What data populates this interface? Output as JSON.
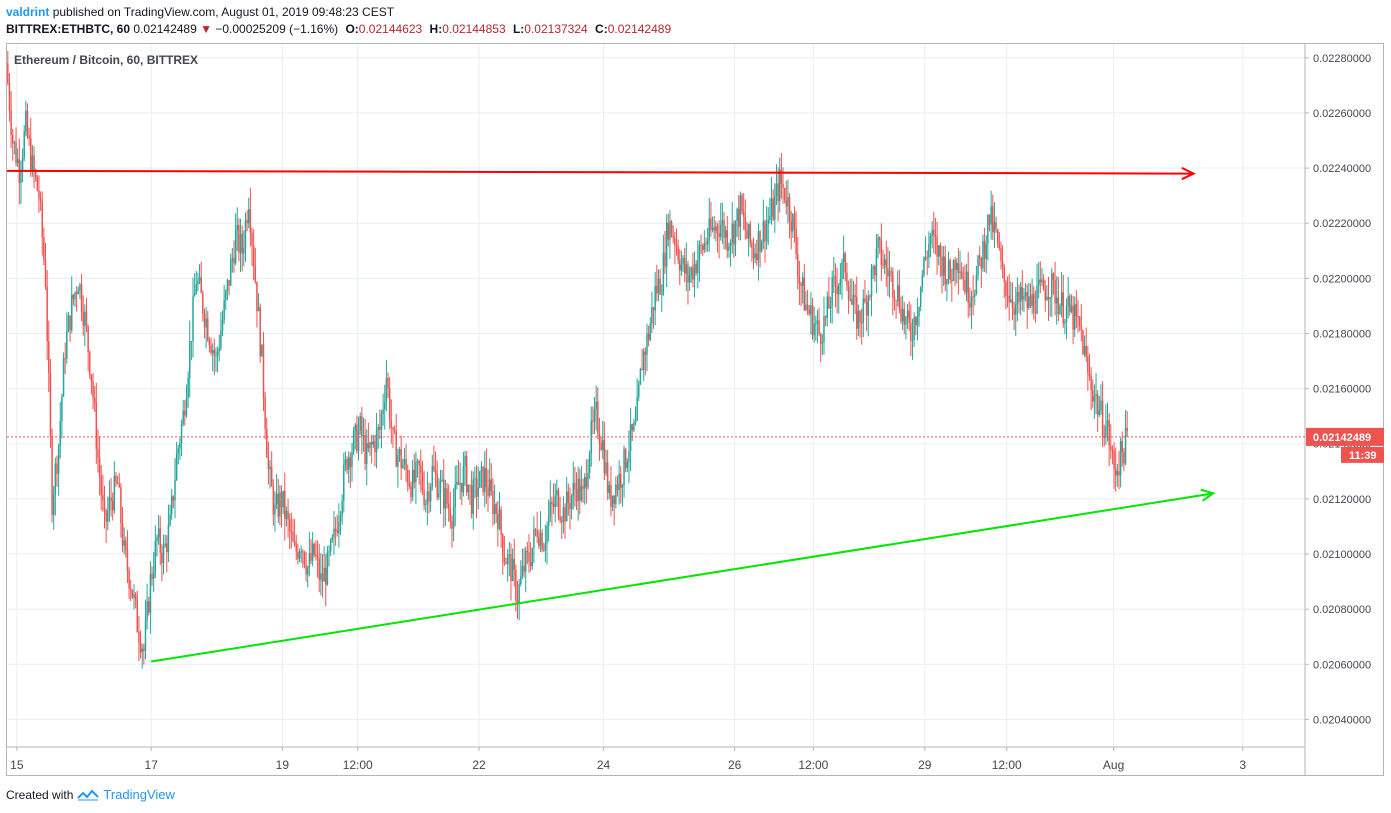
{
  "header": {
    "author": "valdrint",
    "published": "published on TradingView.com, August 01, 2019 09:48:23 CEST",
    "symbol": "BITTREX:ETHBTC, 60",
    "last": "0.02142489",
    "change_arrow": "▼",
    "change": "−0.00025209 (−1.16%)",
    "o_label": "O:",
    "o": "0.02144623",
    "h_label": "H:",
    "h": "0.02144853",
    "l_label": "L:",
    "l": "0.02137324",
    "c_label": "C:",
    "c": "0.02142489"
  },
  "legend": "Ethereum / Bitcoin, 60, BITTREX",
  "footer": {
    "created_with": "Created with",
    "brand": "TradingView"
  },
  "colors": {
    "up": "#26a69a",
    "down": "#ef5350",
    "grid": "#e9eef3",
    "resistance": "#ff0000",
    "support": "#00e600",
    "price_tag": "#ef5350",
    "axis_text": "#434651"
  },
  "chart_data": {
    "type": "candlestick",
    "title": "Ethereum / Bitcoin, 60, BITTREX",
    "ylim": [
      0.0203,
      0.02285
    ],
    "y_ticks": [
      "0.02040000",
      "0.02060000",
      "0.02080000",
      "0.02100000",
      "0.02120000",
      "0.02140000",
      "0.02160000",
      "0.02180000",
      "0.02200000",
      "0.02220000",
      "0.02240000",
      "0.02260000",
      "0.02280000"
    ],
    "x_ticks": [
      {
        "label": "15",
        "t": 1.5
      },
      {
        "label": "17",
        "t": 22
      },
      {
        "label": "19",
        "t": 42
      },
      {
        "label": "12:00",
        "t": 53.5
      },
      {
        "label": "22",
        "t": 72
      },
      {
        "label": "24",
        "t": 91
      },
      {
        "label": "26",
        "t": 111
      },
      {
        "label": "12:00",
        "t": 123
      },
      {
        "label": "29",
        "t": 140
      },
      {
        "label": "12:00",
        "t": 152.5
      },
      {
        "label": "Aug",
        "t": 168.8
      },
      {
        "label": "3",
        "t": 188.5
      }
    ],
    "xlim": [
      0,
      198
    ],
    "current_price": "0.02142489",
    "countdown": "11:39",
    "price_path": [
      [
        0,
        0.02278
      ],
      [
        1,
        0.0225
      ],
      [
        2,
        0.0224
      ],
      [
        3,
        0.02255
      ],
      [
        4,
        0.0224
      ],
      [
        5,
        0.0223
      ],
      [
        6,
        0.022
      ],
      [
        7,
        0.0212
      ],
      [
        8,
        0.0214
      ],
      [
        9,
        0.02175
      ],
      [
        10,
        0.0219
      ],
      [
        11,
        0.022
      ],
      [
        12,
        0.02185
      ],
      [
        13,
        0.02165
      ],
      [
        14,
        0.02135
      ],
      [
        15,
        0.0211
      ],
      [
        16,
        0.0212
      ],
      [
        17,
        0.02125
      ],
      [
        18,
        0.021
      ],
      [
        19,
        0.0209
      ],
      [
        20,
        0.02075
      ],
      [
        21,
        0.02065
      ],
      [
        22,
        0.0209
      ],
      [
        23,
        0.02105
      ],
      [
        24,
        0.021
      ],
      [
        25,
        0.0211
      ],
      [
        26,
        0.02135
      ],
      [
        27,
        0.0215
      ],
      [
        28,
        0.02175
      ],
      [
        29,
        0.022
      ],
      [
        30,
        0.0219
      ],
      [
        31,
        0.0218
      ],
      [
        32,
        0.0217
      ],
      [
        33,
        0.02185
      ],
      [
        34,
        0.022
      ],
      [
        35,
        0.02215
      ],
      [
        36,
        0.0221
      ],
      [
        37,
        0.0223
      ],
      [
        38,
        0.022
      ],
      [
        39,
        0.0217
      ],
      [
        40,
        0.0213
      ],
      [
        41,
        0.02115
      ],
      [
        42,
        0.0212
      ],
      [
        43,
        0.0211
      ],
      [
        44,
        0.021
      ],
      [
        45,
        0.02105
      ],
      [
        46,
        0.02095
      ],
      [
        47,
        0.021
      ],
      [
        48,
        0.0209
      ],
      [
        49,
        0.02095
      ],
      [
        50,
        0.02105
      ],
      [
        51,
        0.0212
      ],
      [
        52,
        0.02135
      ],
      [
        53,
        0.0214
      ],
      [
        54,
        0.02145
      ],
      [
        55,
        0.02135
      ],
      [
        56,
        0.0214
      ],
      [
        57,
        0.02145
      ],
      [
        58,
        0.02165
      ],
      [
        59,
        0.0214
      ],
      [
        60,
        0.02135
      ],
      [
        61,
        0.0213
      ],
      [
        62,
        0.02125
      ],
      [
        63,
        0.0213
      ],
      [
        64,
        0.0212
      ],
      [
        65,
        0.0213
      ],
      [
        66,
        0.02125
      ],
      [
        67,
        0.0212
      ],
      [
        68,
        0.02115
      ],
      [
        69,
        0.02125
      ],
      [
        70,
        0.0213
      ],
      [
        71,
        0.0212
      ],
      [
        72,
        0.02125
      ],
      [
        73,
        0.02128
      ],
      [
        74,
        0.0212
      ],
      [
        75,
        0.02115
      ],
      [
        76,
        0.021
      ],
      [
        77,
        0.02095
      ],
      [
        78,
        0.02085
      ],
      [
        79,
        0.02095
      ],
      [
        80,
        0.021
      ],
      [
        81,
        0.0211
      ],
      [
        82,
        0.02105
      ],
      [
        83,
        0.02115
      ],
      [
        84,
        0.0212
      ],
      [
        85,
        0.02115
      ],
      [
        86,
        0.0212
      ],
      [
        87,
        0.02125
      ],
      [
        88,
        0.0212
      ],
      [
        89,
        0.0214
      ],
      [
        90,
        0.0215
      ],
      [
        91,
        0.0214
      ],
      [
        92,
        0.0212
      ],
      [
        93,
        0.02125
      ],
      [
        94,
        0.0213
      ],
      [
        95,
        0.0214
      ],
      [
        96,
        0.02145
      ],
      [
        97,
        0.0217
      ],
      [
        98,
        0.0218
      ],
      [
        99,
        0.02195
      ],
      [
        100,
        0.022
      ],
      [
        101,
        0.0222
      ],
      [
        102,
        0.02215
      ],
      [
        103,
        0.02205
      ],
      [
        104,
        0.022
      ],
      [
        105,
        0.02205
      ],
      [
        106,
        0.0221
      ],
      [
        107,
        0.02215
      ],
      [
        108,
        0.02218
      ],
      [
        109,
        0.0222
      ],
      [
        110,
        0.02215
      ],
      [
        111,
        0.02218
      ],
      [
        112,
        0.02225
      ],
      [
        113,
        0.02215
      ],
      [
        114,
        0.0221
      ],
      [
        115,
        0.02215
      ],
      [
        116,
        0.0222
      ],
      [
        117,
        0.02225
      ],
      [
        118,
        0.02235
      ],
      [
        119,
        0.0223
      ],
      [
        120,
        0.0222
      ],
      [
        121,
        0.022
      ],
      [
        122,
        0.0219
      ],
      [
        123,
        0.02185
      ],
      [
        124,
        0.0218
      ],
      [
        125,
        0.02185
      ],
      [
        126,
        0.02195
      ],
      [
        127,
        0.022
      ],
      [
        128,
        0.02205
      ],
      [
        129,
        0.0219
      ],
      [
        130,
        0.02185
      ],
      [
        131,
        0.0219
      ],
      [
        132,
        0.022
      ],
      [
        133,
        0.0221
      ],
      [
        134,
        0.02205
      ],
      [
        135,
        0.022
      ],
      [
        136,
        0.02195
      ],
      [
        137,
        0.02185
      ],
      [
        138,
        0.0218
      ],
      [
        139,
        0.0219
      ],
      [
        140,
        0.02205
      ],
      [
        141,
        0.02215
      ],
      [
        142,
        0.0221
      ],
      [
        143,
        0.02205
      ],
      [
        144,
        0.022
      ],
      [
        145,
        0.0221
      ],
      [
        146,
        0.022
      ],
      [
        147,
        0.02195
      ],
      [
        148,
        0.022
      ],
      [
        149,
        0.0221
      ],
      [
        150,
        0.02222
      ],
      [
        151,
        0.02215
      ],
      [
        152,
        0.022
      ],
      [
        153,
        0.02195
      ],
      [
        154,
        0.0219
      ],
      [
        155,
        0.02192
      ],
      [
        156,
        0.0219
      ],
      [
        157,
        0.02193
      ],
      [
        158,
        0.02195
      ],
      [
        159,
        0.02198
      ],
      [
        160,
        0.02195
      ],
      [
        161,
        0.0219
      ],
      [
        162,
        0.02188
      ],
      [
        163,
        0.02185
      ],
      [
        164,
        0.0218
      ],
      [
        165,
        0.02165
      ],
      [
        166,
        0.02158
      ],
      [
        167,
        0.0215
      ],
      [
        168,
        0.02145
      ],
      [
        169,
        0.0213
      ],
      [
        170,
        0.02135
      ],
      [
        171,
        0.02142
      ]
    ],
    "resistance": {
      "start": [
        0,
        0.02239
      ],
      "end": [
        181,
        0.02238
      ],
      "arrow": true
    },
    "support": {
      "start": [
        22,
        0.02061
      ],
      "end": [
        184,
        0.02122
      ],
      "arrow": true
    }
  }
}
